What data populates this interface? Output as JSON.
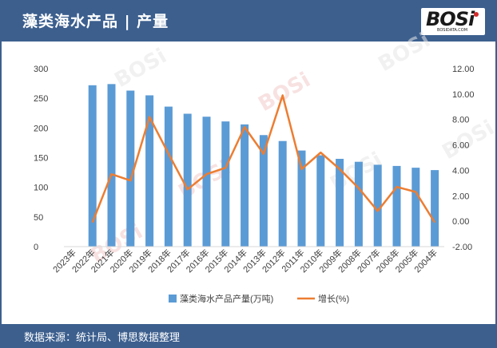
{
  "header": {
    "title": "藻类海水产品 | 产量",
    "logo_text": "BOSi",
    "logo_sub": "BOSIDATA.COM"
  },
  "footer": {
    "source": "数据来源：统计局、博思数据整理"
  },
  "colors": {
    "header_bg": "#3c5f8e",
    "bar": "#5b9bd5",
    "line": "#ed7d31",
    "axis_text": "#404040",
    "logo_dot": "#d52b2b"
  },
  "chart_data": {
    "type": "bar",
    "categories": [
      "2023年",
      "2022年",
      "2021年",
      "2020年",
      "2019年",
      "2018年",
      "2017年",
      "2016年",
      "2015年",
      "2014年",
      "2013年",
      "2012年",
      "2011年",
      "2010年",
      "2009年",
      "2008年",
      "2007年",
      "2006年",
      "2005年",
      "2004年"
    ],
    "series": [
      {
        "name": "藻类海水产品产量(万吨)",
        "type": "bar",
        "axis": "left",
        "values": [
          null,
          272,
          274,
          263,
          255,
          236,
          224,
          219,
          211,
          206,
          188,
          178,
          162,
          154,
          148,
          143,
          138,
          136,
          133,
          129
        ]
      },
      {
        "name": "增长(%)",
        "type": "line",
        "axis": "right",
        "values": [
          null,
          -0.1,
          3.7,
          3.2,
          8.2,
          5.3,
          2.5,
          3.7,
          4.2,
          7.4,
          5.3,
          9.9,
          4.1,
          5.4,
          4.1,
          2.6,
          0.8,
          2.7,
          2.3,
          -0.1
        ]
      }
    ],
    "y_left": {
      "min": 0,
      "max": 300,
      "ticks": [
        "0",
        "50",
        "100",
        "150",
        "200",
        "250",
        "300"
      ]
    },
    "y_right": {
      "min": -2,
      "max": 12,
      "ticks": [
        "-2.00",
        "0.00",
        "2.00",
        "4.00",
        "6.00",
        "8.00",
        "10.00",
        "12.00"
      ]
    },
    "grid": false,
    "legend_position": "bottom"
  }
}
